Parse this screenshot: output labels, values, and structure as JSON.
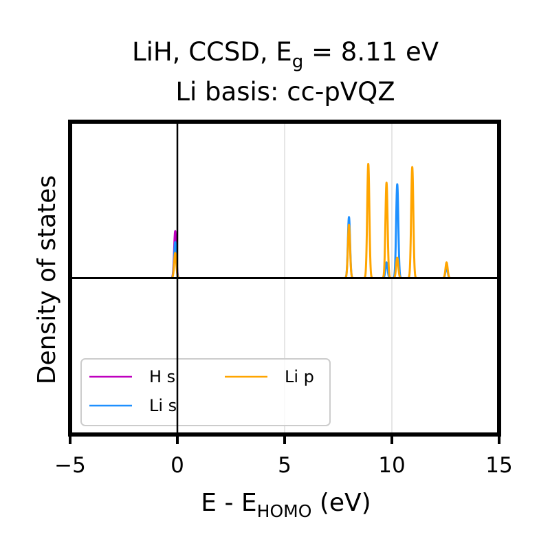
{
  "chart_data": {
    "type": "line",
    "title_line1_prefix": "LiH, CCSD, E",
    "title_line1_sub": "g",
    "title_line1_suffix": " = 8.11 eV",
    "title_line2": "Li basis: cc-pVQZ",
    "xlabel_prefix": "E - E",
    "xlabel_sub": "HOMO",
    "xlabel_suffix": " (eV)",
    "ylabel": "Density of states",
    "xlim": [
      -5,
      15
    ],
    "ylim": [
      -1,
      1
    ],
    "xticks": [
      -5,
      0,
      5,
      10,
      15
    ],
    "xtick_labels": [
      "−5",
      "0",
      "5",
      "10",
      "15"
    ],
    "vertical_gridlines": [
      5,
      10
    ],
    "reference_lines": {
      "vertical_x": 0,
      "horizontal_y": 0
    },
    "legend": {
      "placement": "lower-left",
      "columns": 2,
      "entries": [
        "H s",
        "Li s",
        "Li p"
      ]
    },
    "peak_width_ev": 0.05,
    "series": [
      {
        "name": "H s",
        "color": "#BF00BF",
        "peaks": [
          {
            "x": -0.1,
            "height": 0.3
          }
        ]
      },
      {
        "name": "Li s",
        "color": "#1E90FF",
        "peaks": [
          {
            "x": -0.1,
            "height": 0.23
          },
          {
            "x": 8.0,
            "height": 0.39
          },
          {
            "x": 9.75,
            "height": 0.1
          },
          {
            "x": 10.25,
            "height": 0.6
          },
          {
            "x": 12.55,
            "height": 0.07
          }
        ]
      },
      {
        "name": "Li p",
        "color": "#FFA500",
        "peaks": [
          {
            "x": -0.1,
            "height": 0.16
          },
          {
            "x": 8.0,
            "height": 0.34
          },
          {
            "x": 8.9,
            "height": 0.73
          },
          {
            "x": 9.75,
            "height": 0.61
          },
          {
            "x": 10.25,
            "height": 0.13
          },
          {
            "x": 10.95,
            "height": 0.71
          },
          {
            "x": 12.55,
            "height": 0.1
          }
        ]
      }
    ]
  }
}
